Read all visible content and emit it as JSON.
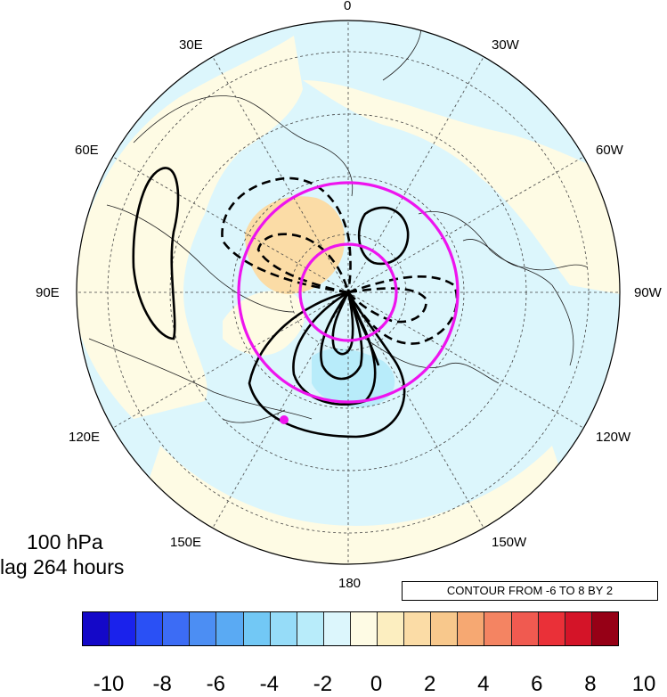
{
  "lon_labels": [
    "0",
    "30W",
    "60W",
    "90W",
    "120W",
    "150W",
    "180",
    "150E",
    "120E",
    "90E",
    "60E",
    "30E"
  ],
  "level_label": "100 hPa",
  "lag_label": "lag 264 hours",
  "contour_info": "CONTOUR FROM -6 TO 8 BY 2",
  "colorbar": {
    "colors": [
      "#1408c8",
      "#1a22ec",
      "#2a50f5",
      "#3c6cf5",
      "#4c8ef3",
      "#5aaaf3",
      "#72c8f5",
      "#96dcf8",
      "#b8ecfa",
      "#dcf6fc",
      "#fefbe4",
      "#fceec0",
      "#fbdca6",
      "#f8c88c",
      "#f6a872",
      "#f48462",
      "#f05a50",
      "#ea3038",
      "#d41428",
      "#960016"
    ],
    "tick_labels": [
      "-10",
      "-8",
      "-6",
      "-4",
      "-2",
      "0",
      "2",
      "4",
      "6",
      "8",
      "10"
    ]
  },
  "colors": {
    "negative_light": "#dcf6fc",
    "positive_light": "#fefbe4",
    "positive_mid": "#fbdca6",
    "negative_mid": "#b8ecfa",
    "contour_line": "#000000",
    "highlight_circle": "#ee14ee"
  }
}
